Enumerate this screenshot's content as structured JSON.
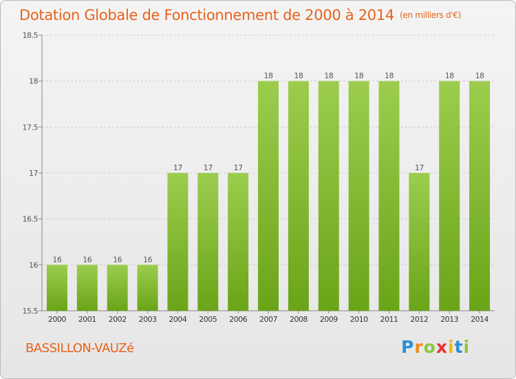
{
  "title": "Dotation Globale de Fonctionnement de 2000 à 2014",
  "unit": "(en milliers d'€)",
  "commune": "BASSILLON-VAUZé",
  "logo": {
    "text": "Proxiti",
    "colors": [
      "#2a8fd6",
      "#f08a1c",
      "#8cc63f",
      "#e8302a",
      "#f5b800",
      "#2a8fd6",
      "#8cc63f"
    ]
  },
  "colors": {
    "bar_top": "#9ccd4e",
    "bar_bottom": "#6aa418",
    "text": "#e8621a",
    "grid": "#cccccc"
  },
  "chart_data": {
    "type": "bar",
    "categories": [
      "2000",
      "2001",
      "2002",
      "2003",
      "2004",
      "2005",
      "2006",
      "2007",
      "2008",
      "2009",
      "2010",
      "2011",
      "2012",
      "2013",
      "2014"
    ],
    "values": [
      16,
      16,
      16,
      16,
      17,
      17,
      17,
      18,
      18,
      18,
      18,
      18,
      17,
      18,
      18
    ],
    "data_labels": [
      "16",
      "16",
      "16",
      "16",
      "17",
      "17",
      "17",
      "18",
      "18",
      "18",
      "18",
      "18",
      "17",
      "18",
      "18"
    ],
    "y_ticks": [
      "15.5",
      "16",
      "16.5",
      "17",
      "17.5",
      "18",
      "18.5"
    ],
    "ylim": [
      15.5,
      18.5
    ],
    "grid": "horizontal dashed"
  }
}
